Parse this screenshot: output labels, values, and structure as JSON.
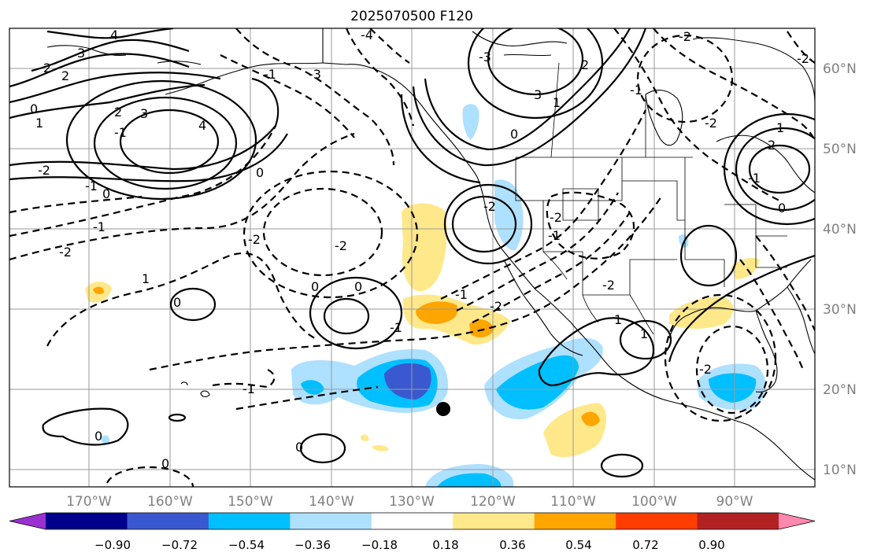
{
  "title": "2025070500 F120",
  "longitude_labels": [
    "170°W",
    "160°W",
    "150°W",
    "140°W",
    "130°W",
    "120°W",
    "110°W",
    "100°W",
    "90°W"
  ],
  "latitude_labels": [
    "60°N",
    "50°N",
    "40°N",
    "30°N",
    "20°N",
    "10°N"
  ],
  "colorbar": {
    "tick_labels": [
      "−0.90",
      "−0.72",
      "−0.54",
      "−0.36",
      "−0.18",
      "0.18",
      "0.36",
      "0.54",
      "0.72",
      "0.90"
    ],
    "colors": [
      "#9b30d0",
      "#00008b",
      "#3a58cf",
      "#00bfff",
      "#aee0ff",
      "#ffffff",
      "#ffe88a",
      "#ffa500",
      "#ff3d00",
      "#b22222",
      "#ff88b0"
    ]
  },
  "contour_labels": [
    "4",
    "3",
    "2",
    "2",
    "0",
    "1",
    "2",
    "3",
    "4",
    "-1",
    "0",
    "-2",
    "-1",
    "-2",
    "-2",
    "-2",
    "-3",
    "-4",
    "-1",
    "-1",
    "0",
    "0",
    "-1",
    "1",
    "0",
    "-1",
    "-2",
    "-3",
    "-2",
    "3",
    "2",
    "1",
    "0",
    "-2",
    "-1",
    "-2",
    "-2",
    "-1",
    "-2",
    "1",
    "2",
    "-1",
    "0",
    "-2",
    "1",
    "-1",
    "-2",
    "1",
    "0",
    "0",
    "0",
    "0"
  ],
  "contour_intervals": {
    "solid": "positive",
    "dashed": "negative"
  }
}
